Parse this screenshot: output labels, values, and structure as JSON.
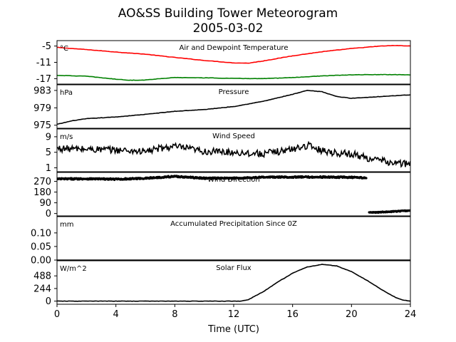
{
  "chart_data": {
    "type": "line",
    "title": "AO&SS Building Tower Meteorogram",
    "subtitle": "2005-03-02",
    "xlabel": "Time (UTC)",
    "xlim": [
      0,
      24
    ],
    "xticks": [
      "0",
      "4",
      "8",
      "12",
      "16",
      "20",
      "24"
    ],
    "panels": [
      {
        "title": "Air and Dewpoint Temperature",
        "unit": "°C",
        "ylim": [
          -19,
          -3
        ],
        "yticks": [
          "-5",
          "-11",
          "-17"
        ],
        "series": [
          {
            "color": "#ff0000",
            "style": "line",
            "x": [
              0,
              2,
              4,
              6,
              8,
              10,
              12,
              13,
              14,
              16,
              18,
              20,
              22,
              23,
              24
            ],
            "y": [
              -5.5,
              -6.3,
              -7.2,
              -8.0,
              -9.2,
              -10.3,
              -11.2,
              -11.3,
              -10.5,
              -8.6,
              -7.1,
              -5.9,
              -5.0,
              -4.8,
              -5.0
            ]
          },
          {
            "color": "#008000",
            "style": "line",
            "x": [
              0,
              2,
              4,
              5,
              6,
              7,
              8,
              10,
              12,
              14,
              16,
              18,
              20,
              22,
              24
            ],
            "y": [
              -15.8,
              -16.1,
              -17.2,
              -17.6,
              -17.5,
              -17.0,
              -16.6,
              -16.7,
              -16.9,
              -17.0,
              -16.6,
              -16.0,
              -15.6,
              -15.5,
              -15.6
            ]
          }
        ]
      },
      {
        "title": "Pressure",
        "unit": "hPa",
        "ylim": [
          974.3,
          984.3
        ],
        "yticks": [
          "983",
          "979",
          "975"
        ],
        "series": [
          {
            "color": "#000000",
            "style": "line",
            "x": [
              0,
              1,
              2,
              4,
              6,
              8,
              10,
              12,
              14,
              16,
              17,
              18,
              19,
              20,
              22,
              24
            ],
            "y": [
              975.2,
              976.0,
              976.5,
              976.9,
              977.5,
              978.2,
              978.6,
              979.3,
              980.5,
              982.1,
              983.0,
              982.7,
              981.6,
              981.2,
              981.6,
              982.0
            ]
          }
        ]
      },
      {
        "title": "Wind Speed",
        "unit": "m/s",
        "ylim": [
          0,
          11
        ],
        "yticks": [
          "9",
          "5",
          "1"
        ],
        "series": [
          {
            "color": "#000000",
            "style": "line",
            "jitter": 0.9,
            "x": [
              0,
              2,
              4,
              6,
              7,
              8,
              10,
              12,
              14,
              16,
              17,
              18,
              19,
              20,
              21,
              22,
              23,
              24
            ],
            "y": [
              6.0,
              5.8,
              5.6,
              5.2,
              6.0,
              6.5,
              5.2,
              5.0,
              4.6,
              5.8,
              6.8,
              5.5,
              4.8,
              4.6,
              3.6,
              2.8,
              2.2,
              2.0
            ]
          }
        ]
      },
      {
        "title": "Wind Direction",
        "unit": "°",
        "ylim": [
          -20,
          345
        ],
        "yticks": [
          "270",
          "180",
          "90",
          "0"
        ],
        "series": [
          {
            "color": "#000000",
            "style": "dots",
            "jitter": 6,
            "x": [
              0,
              2,
              4,
              6,
              8,
              10,
              12,
              14,
              16,
              18,
              20,
              21
            ],
            "y": [
              290,
              292,
              288,
              296,
              312,
              296,
              296,
              305,
              306,
              306,
              304,
              298
            ]
          },
          {
            "color": "#000000",
            "style": "dots",
            "jitter": 4,
            "x": [
              21.2,
              22,
              23,
              24
            ],
            "y": [
              8,
              12,
              18,
              25
            ]
          }
        ]
      },
      {
        "title": "Accumulated Precipitation Since 0Z",
        "unit": "mm",
        "ylim": [
          0,
          0.16
        ],
        "yticks": [
          "0.10",
          "0.05",
          "0.00"
        ],
        "series": [
          {
            "color": "#000000",
            "style": "line",
            "x": [
              0,
              24
            ],
            "y": [
              0,
              0
            ]
          }
        ]
      },
      {
        "title": "Solar Flux",
        "unit": "W/m^2",
        "ylim": [
          -60,
          780
        ],
        "yticks": [
          "488",
          "244",
          "0"
        ],
        "series": [
          {
            "color": "#000000",
            "style": "line",
            "x": [
              0,
              12.5,
              13,
              14,
              15,
              16,
              17,
              18,
              19,
              20,
              21,
              22,
              23,
              23.5,
              24
            ],
            "y": [
              0,
              0,
              30,
              180,
              370,
              540,
              660,
              710,
              680,
              570,
              410,
              230,
              70,
              20,
              0
            ]
          }
        ]
      }
    ]
  }
}
